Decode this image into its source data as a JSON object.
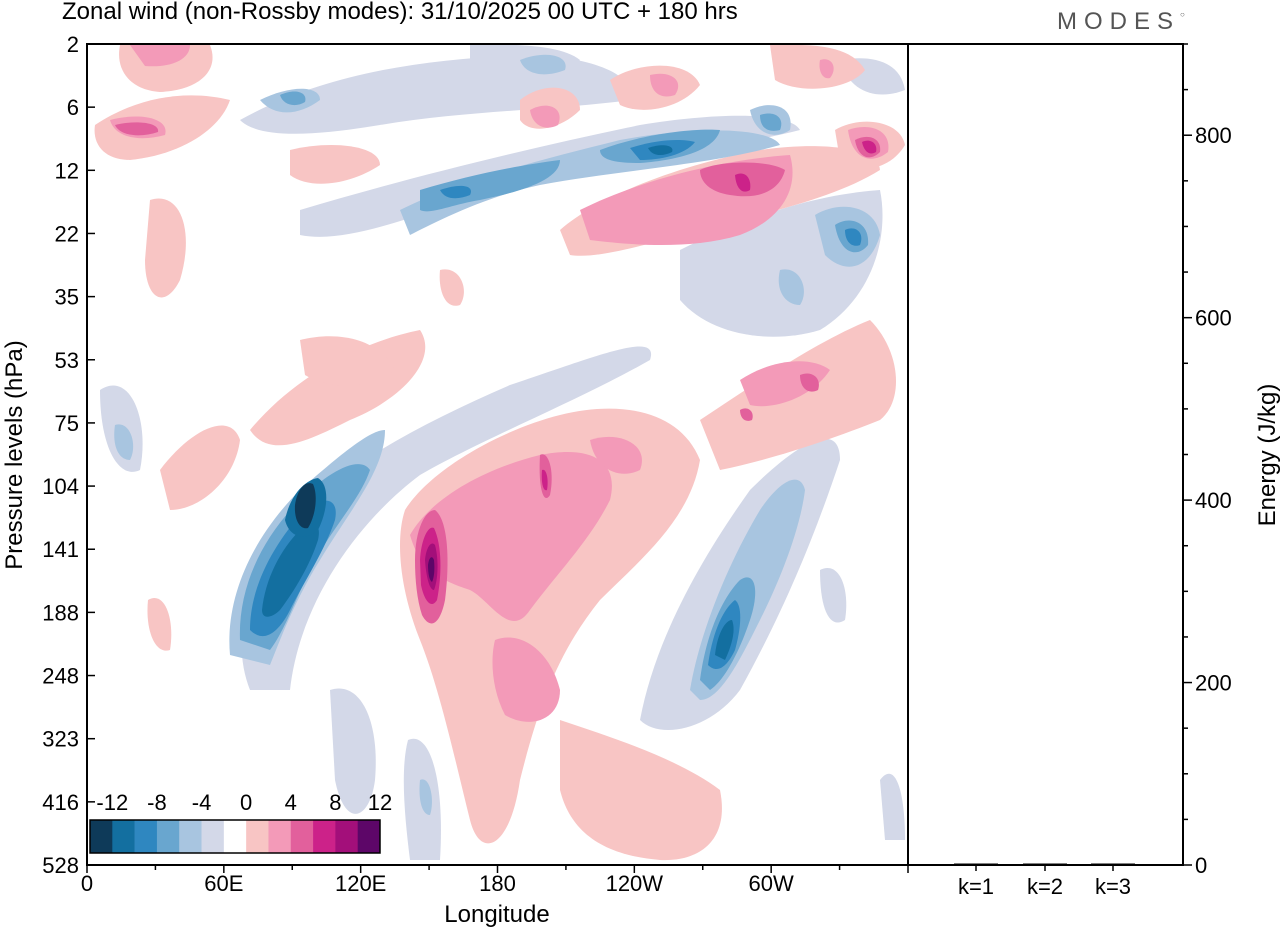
{
  "logo": "MODES",
  "chart_data": {
    "type": "heatmap",
    "title": "Zonal wind (non-Rossby modes):  31/10/2025  00 UTC  + 180 hrs",
    "xlabel": "Longitude",
    "ylabel": "Pressure levels (hPa)",
    "x_ticks": [
      "0",
      "60E",
      "120E",
      "180",
      "120W",
      "60W"
    ],
    "y_ticks": [
      "2",
      "6",
      "12",
      "22",
      "35",
      "53",
      "75",
      "104",
      "141",
      "188",
      "248",
      "323",
      "416",
      "528"
    ],
    "colorbar": {
      "labels": [
        "-12",
        "-8",
        "-4",
        "0",
        "4",
        "8",
        "12"
      ],
      "colors": [
        "#0e3a59",
        "#136fa0",
        "#2f87c0",
        "#69a6cf",
        "#a8c5e0",
        "#d3d8e8",
        "#ffffff",
        "#f8c5c4",
        "#f39ab8",
        "#e2609c",
        "#cc2289",
        "#a30f7a",
        "#5d0668"
      ]
    },
    "features": [
      {
        "lon": 97,
        "level": 110,
        "value": -14
      },
      {
        "lon": 150,
        "level": 150,
        "value": 12
      },
      {
        "lon": 268,
        "level": 165,
        "value": -8
      },
      {
        "lon": 352,
        "level": 9,
        "value": 10
      },
      {
        "lon": 245,
        "level": 9.5,
        "value": -9
      },
      {
        "lon": 258,
        "level": 13,
        "value": 6
      },
      {
        "lon": 15,
        "level": 7.5,
        "value": 6
      }
    ],
    "energy_panel": {
      "ylabel": "Energy (J/kg)",
      "y_ticks": [
        0,
        200,
        400,
        600,
        800
      ],
      "ylim": [
        0,
        900
      ],
      "categories": [
        "k=1",
        "k=2",
        "k=3"
      ],
      "values": [
        1.5,
        1.2,
        0.6
      ]
    }
  }
}
